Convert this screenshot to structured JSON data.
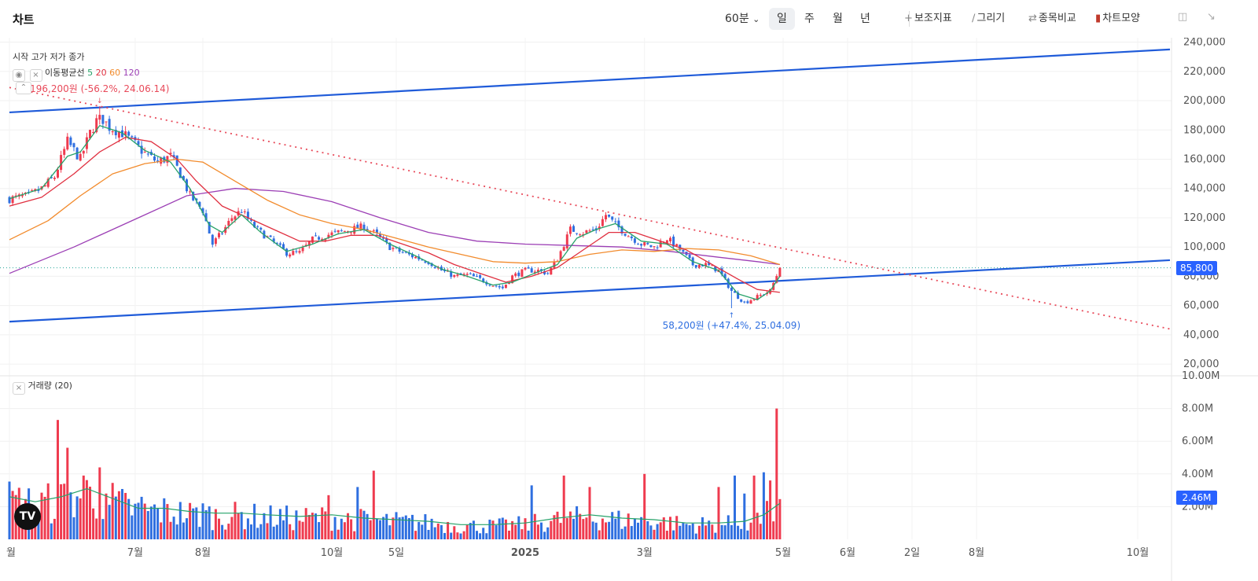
{
  "header": {
    "title": "차트",
    "interval": "60분",
    "periods": [
      "일",
      "주",
      "월",
      "년"
    ],
    "selected_period": "일",
    "tools": {
      "indicator": "보조지표",
      "draw": "그리기",
      "compare": "종목비교",
      "chart_type": "차트모양"
    }
  },
  "legend": {
    "ohlc": "시작 고가 저가 종가",
    "ma_label": "이동평균선",
    "ma_periods": [
      "5",
      "20",
      "60",
      "120"
    ],
    "volume_label": "거래량 (20)"
  },
  "colors": {
    "up": "#ef3b4f",
    "down": "#2f6fe0",
    "ma5": "#26a269",
    "ma20": "#e03040",
    "ma60": "#f28b2c",
    "ma120": "#9c3fb5",
    "trendline": "#1f5bd9",
    "accent": "#2962ff"
  },
  "annotations": {
    "high": "196,200원 (-56.2%, 24.06.14)",
    "low": "58,200원 (+47.4%, 25.04.09)"
  },
  "last_price_label": "85,800",
  "last_volume_label": "2.46M",
  "chart_data": {
    "type": "candlestick",
    "price_axis": {
      "ylim": [
        12000,
        243000
      ],
      "ticks": [
        240000,
        220000,
        200000,
        180000,
        160000,
        140000,
        120000,
        100000,
        80000,
        60000,
        40000,
        20000
      ],
      "tick_labels": [
        "240,000",
        "220,000",
        "200,000",
        "180,000",
        "160,000",
        "140,000",
        "120,000",
        "100,000",
        "80,000",
        "60,000",
        "40,000",
        "20,000"
      ]
    },
    "volume_axis": {
      "ylim": [
        0,
        10000000
      ],
      "ticks": [
        10000000,
        8000000,
        6000000,
        4000000,
        2000000
      ],
      "tick_labels": [
        "10.00M",
        "8.00M",
        "6.00M",
        "4.00M",
        "2.00M"
      ]
    },
    "x_axis": {
      "labels": [
        "월",
        "7월",
        "8월",
        "10월",
        "5일",
        "2025",
        "3월",
        "5월",
        "6월",
        "2일",
        "8월",
        "10월"
      ],
      "label_index": [
        0,
        39,
        60,
        100,
        120,
        160,
        197,
        240,
        260,
        280,
        300,
        350
      ],
      "bold": [
        "2025"
      ]
    },
    "last_price": 85800,
    "last_volume": 2460000,
    "high_point": {
      "value": 196200,
      "index": 28
    },
    "low_point": {
      "value": 58200,
      "index": 224
    },
    "close_path": [
      [
        0,
        133000
      ],
      [
        6,
        135000
      ],
      [
        10,
        140000
      ],
      [
        14,
        148000
      ],
      [
        18,
        172000
      ],
      [
        22,
        160000
      ],
      [
        25,
        178000
      ],
      [
        28,
        190000
      ],
      [
        31,
        182000
      ],
      [
        35,
        178000
      ],
      [
        38,
        172000
      ],
      [
        42,
        164000
      ],
      [
        46,
        158000
      ],
      [
        50,
        162000
      ],
      [
        53,
        150000
      ],
      [
        56,
        135000
      ],
      [
        60,
        125000
      ],
      [
        63,
        102000
      ],
      [
        66,
        110000
      ],
      [
        69,
        120000
      ],
      [
        72,
        125000
      ],
      [
        75,
        116000
      ],
      [
        78,
        110000
      ],
      [
        82,
        103000
      ],
      [
        86,
        96000
      ],
      [
        90,
        96000
      ],
      [
        94,
        105000
      ],
      [
        98,
        108000
      ],
      [
        102,
        110000
      ],
      [
        106,
        112000
      ],
      [
        110,
        114000
      ],
      [
        114,
        108000
      ],
      [
        118,
        100000
      ],
      [
        122,
        96000
      ],
      [
        126,
        93000
      ],
      [
        130,
        90000
      ],
      [
        134,
        84000
      ],
      [
        138,
        80000
      ],
      [
        142,
        81000
      ],
      [
        146,
        78000
      ],
      [
        150,
        74000
      ],
      [
        153,
        72000
      ],
      [
        156,
        80000
      ],
      [
        160,
        84000
      ],
      [
        164,
        84000
      ],
      [
        167,
        82000
      ],
      [
        170,
        92000
      ],
      [
        174,
        112000
      ],
      [
        178,
        110000
      ],
      [
        182,
        112000
      ],
      [
        185,
        122000
      ],
      [
        188,
        115000
      ],
      [
        192,
        108000
      ],
      [
        196,
        102000
      ],
      [
        200,
        100000
      ],
      [
        204,
        106000
      ],
      [
        208,
        98000
      ],
      [
        212,
        88000
      ],
      [
        216,
        88000
      ],
      [
        220,
        84000
      ],
      [
        224,
        70000
      ],
      [
        228,
        62000
      ],
      [
        232,
        66000
      ],
      [
        236,
        70000
      ],
      [
        239,
        85800
      ]
    ],
    "ma_paths": {
      "ma5": [
        [
          0,
          133000
        ],
        [
          10,
          140000
        ],
        [
          18,
          162000
        ],
        [
          22,
          165000
        ],
        [
          28,
          183000
        ],
        [
          35,
          178000
        ],
        [
          42,
          166000
        ],
        [
          50,
          158000
        ],
        [
          56,
          140000
        ],
        [
          62,
          115000
        ],
        [
          66,
          110000
        ],
        [
          72,
          122000
        ],
        [
          78,
          110000
        ],
        [
          86,
          97000
        ],
        [
          94,
          102000
        ],
        [
          102,
          109000
        ],
        [
          110,
          112000
        ],
        [
          118,
          102000
        ],
        [
          126,
          94000
        ],
        [
          134,
          85000
        ],
        [
          142,
          80000
        ],
        [
          150,
          74000
        ],
        [
          156,
          76000
        ],
        [
          164,
          83000
        ],
        [
          170,
          88000
        ],
        [
          176,
          106000
        ],
        [
          182,
          112000
        ],
        [
          188,
          116000
        ],
        [
          196,
          104000
        ],
        [
          204,
          102000
        ],
        [
          212,
          90000
        ],
        [
          220,
          84000
        ],
        [
          226,
          68000
        ],
        [
          232,
          64000
        ],
        [
          236,
          70000
        ],
        [
          239,
          80000
        ]
      ],
      "ma20": [
        [
          0,
          128000
        ],
        [
          10,
          134000
        ],
        [
          20,
          150000
        ],
        [
          28,
          165000
        ],
        [
          36,
          175000
        ],
        [
          44,
          172000
        ],
        [
          52,
          160000
        ],
        [
          58,
          145000
        ],
        [
          66,
          128000
        ],
        [
          74,
          120000
        ],
        [
          82,
          112000
        ],
        [
          90,
          104000
        ],
        [
          98,
          104000
        ],
        [
          106,
          108000
        ],
        [
          114,
          108000
        ],
        [
          122,
          102000
        ],
        [
          130,
          96000
        ],
        [
          138,
          88000
        ],
        [
          146,
          82000
        ],
        [
          154,
          76000
        ],
        [
          162,
          80000
        ],
        [
          170,
          86000
        ],
        [
          178,
          98000
        ],
        [
          186,
          110000
        ],
        [
          194,
          110000
        ],
        [
          202,
          104000
        ],
        [
          210,
          98000
        ],
        [
          218,
          88000
        ],
        [
          226,
          78000
        ],
        [
          232,
          71000
        ],
        [
          239,
          69000
        ]
      ],
      "ma60": [
        [
          0,
          105000
        ],
        [
          12,
          118000
        ],
        [
          22,
          135000
        ],
        [
          32,
          150000
        ],
        [
          42,
          157000
        ],
        [
          52,
          160000
        ],
        [
          60,
          158000
        ],
        [
          70,
          145000
        ],
        [
          80,
          132000
        ],
        [
          90,
          122000
        ],
        [
          100,
          116000
        ],
        [
          110,
          112000
        ],
        [
          120,
          106000
        ],
        [
          130,
          100000
        ],
        [
          140,
          95000
        ],
        [
          150,
          90000
        ],
        [
          160,
          89000
        ],
        [
          170,
          90000
        ],
        [
          180,
          95000
        ],
        [
          190,
          98000
        ],
        [
          200,
          97000
        ],
        [
          210,
          99000
        ],
        [
          220,
          98000
        ],
        [
          230,
          94000
        ],
        [
          239,
          88000
        ]
      ],
      "ma120": [
        [
          0,
          82000
        ],
        [
          20,
          100000
        ],
        [
          40,
          120000
        ],
        [
          55,
          135000
        ],
        [
          70,
          140000
        ],
        [
          85,
          138000
        ],
        [
          100,
          131000
        ],
        [
          115,
          120000
        ],
        [
          130,
          110000
        ],
        [
          145,
          104000
        ],
        [
          160,
          102000
        ],
        [
          175,
          101000
        ],
        [
          190,
          100000
        ],
        [
          205,
          97000
        ],
        [
          220,
          93000
        ],
        [
          232,
          90000
        ],
        [
          239,
          88000
        ]
      ],
      "vol20": [
        [
          0,
          2600000
        ],
        [
          8,
          2300000
        ],
        [
          16,
          2600000
        ],
        [
          24,
          3100000
        ],
        [
          32,
          2500000
        ],
        [
          40,
          1900000
        ],
        [
          48,
          1900000
        ],
        [
          56,
          1700000
        ],
        [
          64,
          1600000
        ],
        [
          72,
          1600000
        ],
        [
          80,
          1500000
        ],
        [
          90,
          1400000
        ],
        [
          100,
          1500000
        ],
        [
          110,
          1300000
        ],
        [
          120,
          1200000
        ],
        [
          130,
          1100000
        ],
        [
          140,
          900000
        ],
        [
          150,
          900000
        ],
        [
          160,
          1000000
        ],
        [
          170,
          1300000
        ],
        [
          180,
          1500000
        ],
        [
          190,
          1300000
        ],
        [
          200,
          1200000
        ],
        [
          210,
          1000000
        ],
        [
          220,
          1000000
        ],
        [
          228,
          1100000
        ],
        [
          234,
          1500000
        ],
        [
          239,
          2200000
        ]
      ]
    },
    "volume_spikes": [
      [
        15,
        7300000
      ],
      [
        18,
        5600000
      ],
      [
        23,
        3900000
      ],
      [
        28,
        4400000
      ],
      [
        30,
        2800000
      ],
      [
        41,
        2600000
      ],
      [
        60,
        2200000
      ],
      [
        99,
        2700000
      ],
      [
        108,
        3200000
      ],
      [
        113,
        4200000
      ],
      [
        162,
        3300000
      ],
      [
        172,
        3900000
      ],
      [
        180,
        3200000
      ],
      [
        197,
        4000000
      ],
      [
        220,
        3200000
      ],
      [
        225,
        3900000
      ],
      [
        228,
        2800000
      ],
      [
        231,
        3900000
      ],
      [
        234,
        4100000
      ],
      [
        236,
        3600000
      ],
      [
        238,
        8000000
      ],
      [
        239,
        2460000
      ]
    ],
    "trendlines": [
      {
        "name": "upper-channel",
        "from": [
          0,
          192000
        ],
        "to": [
          360,
          235000
        ]
      },
      {
        "name": "lower-channel",
        "from": [
          0,
          49000
        ],
        "to": [
          360,
          91000
        ]
      },
      {
        "name": "downtrend",
        "from": [
          0,
          209000
        ],
        "to": [
          360,
          44000
        ],
        "dashed": true
      }
    ]
  }
}
